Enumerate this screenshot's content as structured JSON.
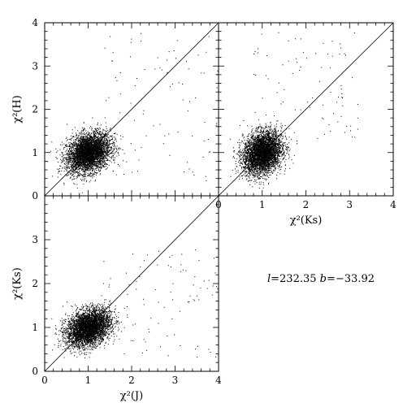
{
  "annotation": {
    "l_symbol": "l",
    "l_value": "=232.35",
    "b_symbol": "b",
    "b_value": "=−33.92"
  },
  "chart_data": [
    {
      "type": "scatter",
      "panel": "top-left",
      "ylabel": "χ²(H)",
      "xlabel": "",
      "xlim": [
        0,
        4
      ],
      "ylim": [
        0,
        4
      ],
      "xticks": [],
      "yticks": [
        "0",
        "1",
        "2",
        "3",
        "4"
      ],
      "reference_line": "y = x",
      "cloud": {
        "center": [
          1.0,
          1.0
        ],
        "spread": [
          0.25,
          0.22
        ],
        "points": 4200
      },
      "tail": {
        "x_range": [
          1.3,
          4
        ],
        "y_range": [
          0.3,
          3.8
        ],
        "points": 90
      }
    },
    {
      "type": "scatter",
      "panel": "top-right",
      "ylabel": "",
      "xlabel": "χ²(Ks)",
      "xlim": [
        0,
        4
      ],
      "ylim": [
        0,
        4
      ],
      "xticks": [
        "0",
        "1",
        "2",
        "3",
        "4"
      ],
      "yticks": [],
      "reference_line": "y = x",
      "cloud": {
        "center": [
          1.0,
          1.0
        ],
        "spread": [
          0.22,
          0.24
        ],
        "points": 4200
      },
      "tail": {
        "x_range": [
          0.8,
          3.2
        ],
        "y_range": [
          1.3,
          3.8
        ],
        "points": 80
      }
    },
    {
      "type": "scatter",
      "panel": "bottom-left",
      "ylabel": "χ²(Ks)",
      "xlabel": "χ²(J)",
      "xlim": [
        0,
        4
      ],
      "ylim": [
        0,
        4
      ],
      "xticks": [
        "0",
        "1",
        "2",
        "3",
        "4"
      ],
      "yticks": [
        "0",
        "1",
        "2",
        "3"
      ],
      "reference_line": "y = x",
      "cloud": {
        "center": [
          1.0,
          1.0
        ],
        "spread": [
          0.25,
          0.2
        ],
        "points": 4200
      },
      "tail": {
        "x_range": [
          1.3,
          4
        ],
        "y_range": [
          0.3,
          2.8
        ],
        "points": 90
      }
    }
  ]
}
